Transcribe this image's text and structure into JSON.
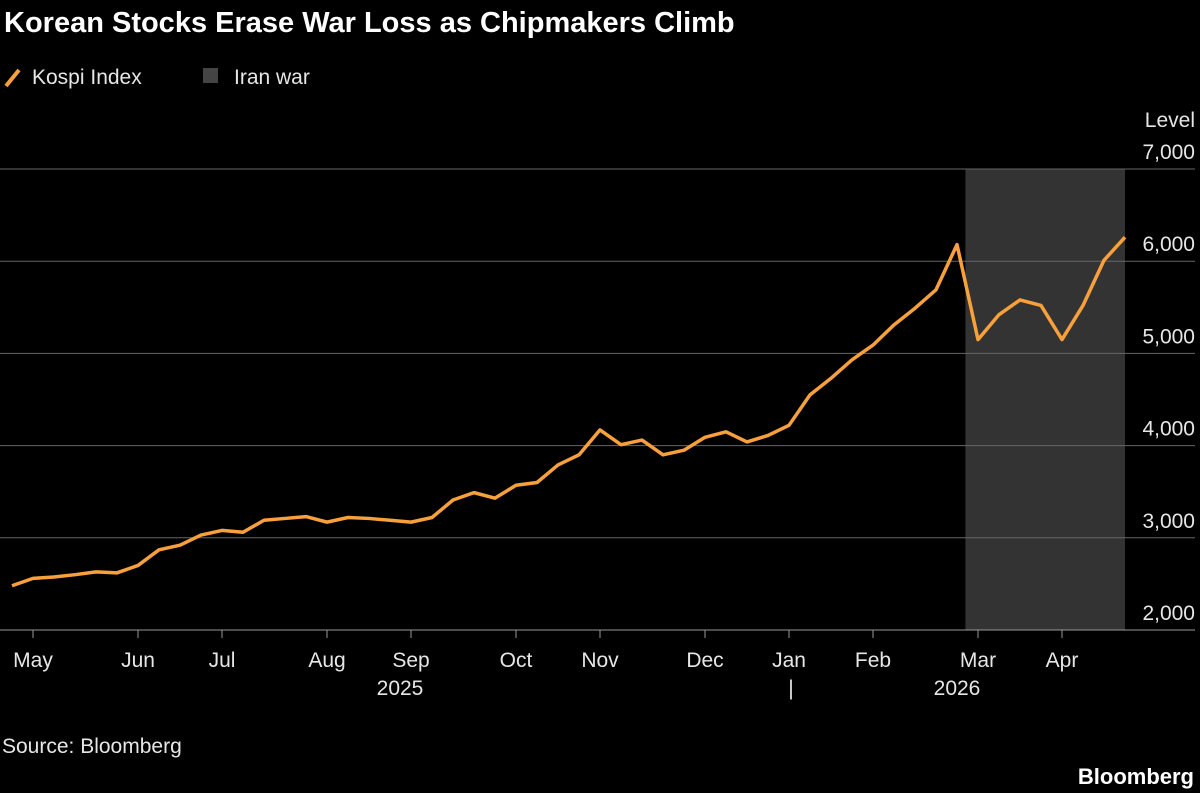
{
  "chart_data": {
    "type": "line",
    "title": "Korean Stocks Erase War Loss as Chipmakers Climb",
    "y_axis_label": "Level",
    "source": "Source: Bloomberg",
    "brand": "Bloomberg",
    "categories": [
      null,
      "May",
      null,
      null,
      null,
      null,
      "Jun",
      null,
      null,
      null,
      "Jul",
      null,
      null,
      null,
      null,
      "Aug",
      null,
      null,
      null,
      "Sep",
      null,
      null,
      null,
      null,
      "Oct",
      null,
      null,
      null,
      "Nov",
      null,
      null,
      null,
      null,
      "Dec",
      null,
      null,
      null,
      "Jan",
      null,
      null,
      null,
      "Feb",
      null,
      null,
      null,
      null,
      "Mar",
      null,
      null,
      null,
      "Apr",
      null,
      null,
      null
    ],
    "year_labels": [
      "2025",
      "2026"
    ],
    "year_divider": "|",
    "series": [
      {
        "name": "Kospi Index",
        "color": "#f7a03c",
        "values": [
          2480,
          2560,
          2575,
          2600,
          2630,
          2620,
          2700,
          2870,
          2920,
          3030,
          3080,
          3060,
          3190,
          3210,
          3230,
          3170,
          3220,
          3210,
          3190,
          3170,
          3220,
          3410,
          3490,
          3430,
          3570,
          3600,
          3790,
          3900,
          4170,
          4010,
          4060,
          3900,
          3950,
          4090,
          4150,
          4040,
          4110,
          4220,
          4550,
          4730,
          4930,
          5090,
          5310,
          5490,
          5690,
          6180,
          5150,
          5420,
          5580,
          5520,
          5150,
          5520,
          6010,
          6260
        ]
      }
    ],
    "highlight": {
      "name": "Iran war",
      "color": "#333333",
      "from": 45,
      "to": 53
    },
    "ylim": [
      2000,
      7000
    ],
    "yticks": [
      {
        "value": 2000,
        "label": "2,000"
      },
      {
        "value": 3000,
        "label": "3,000"
      },
      {
        "value": 4000,
        "label": "4,000"
      },
      {
        "value": 5000,
        "label": "5,000"
      },
      {
        "value": 6000,
        "label": "6,000"
      },
      {
        "value": 7000,
        "label": "7,000"
      }
    ],
    "grid": true
  }
}
